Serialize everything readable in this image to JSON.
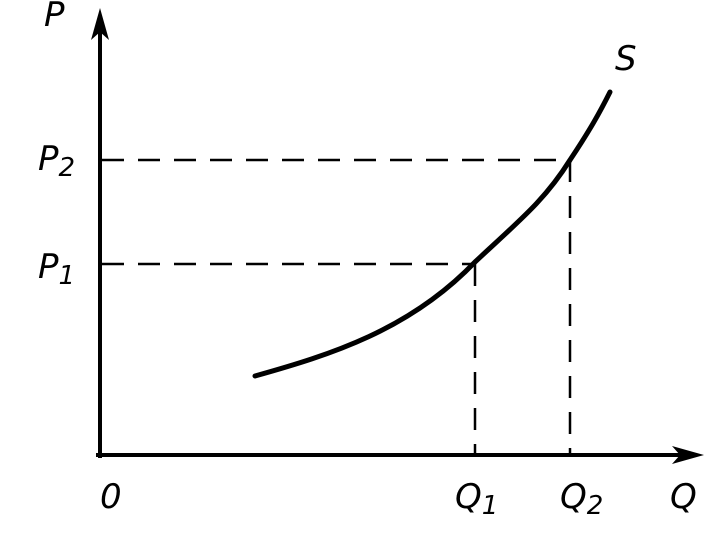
{
  "axes": {
    "y": "P",
    "x": "Q",
    "origin": "0"
  },
  "curve": {
    "label": "S"
  },
  "points": [
    {
      "p": {
        "main": "P",
        "sub": "1"
      },
      "q": {
        "main": "Q",
        "sub": "1"
      }
    },
    {
      "p": {
        "main": "P",
        "sub": "2"
      },
      "q": {
        "main": "Q",
        "sub": "2"
      }
    }
  ]
}
